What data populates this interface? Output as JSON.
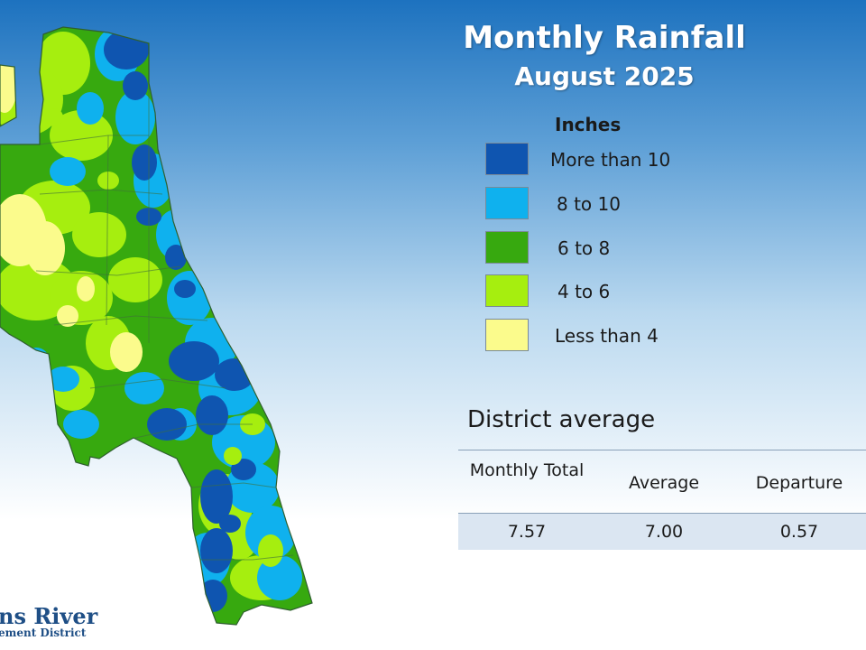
{
  "title": "Monthly Rainfall",
  "subtitle": "August 2025",
  "legend": {
    "title": "Inches",
    "items": [
      {
        "label": "More than 10",
        "color": "#0f55b0"
      },
      {
        "label": "8 to 10",
        "color": "#0fb1ee"
      },
      {
        "label": "6 to 8",
        "color": "#37a90f"
      },
      {
        "label": "4 to 6",
        "color": "#a6ee0f"
      },
      {
        "label": "Less than 4",
        "color": "#fbfb8c"
      }
    ]
  },
  "district_average": {
    "title": "District average",
    "columns": [
      "Monthly Total",
      "Average",
      "Departure"
    ],
    "values": [
      "7.57",
      "7.00",
      "0.57"
    ]
  },
  "logo": {
    "line1": "ns River",
    "line2": "ement District"
  }
}
